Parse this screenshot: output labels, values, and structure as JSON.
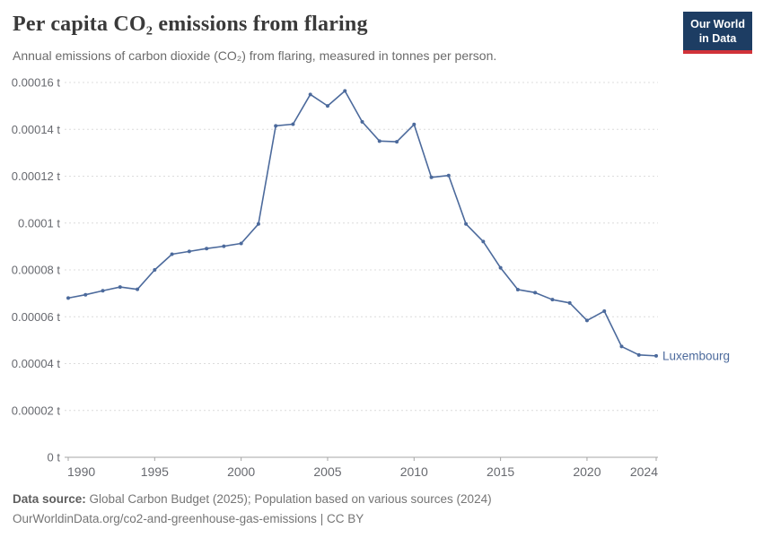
{
  "header": {
    "title": "Per capita CO₂ emissions from flaring",
    "subtitle": "Annual emissions of carbon dioxide (CO₂) from flaring, measured in tonnes per person.",
    "logo": {
      "line1": "Our World",
      "line2": "in Data",
      "bg_color": "#1d3d63",
      "bar_color": "#d13239"
    }
  },
  "chart_data": {
    "type": "line",
    "title": "Per capita CO₂ emissions from flaring",
    "entity": "Luxembourg",
    "unit": "t",
    "xlabel": "",
    "ylabel": "",
    "xlim": [
      1990,
      2024
    ],
    "ylim": [
      0,
      0.00016
    ],
    "grid": true,
    "legend_position": "end-of-line",
    "line_color": "#4c6a9c",
    "grid_color": "#dcdcdc",
    "axis_color": "#a5a5a5",
    "x": [
      1990,
      1991,
      1992,
      1993,
      1994,
      1995,
      1996,
      1997,
      1998,
      1999,
      2000,
      2001,
      2002,
      2003,
      2004,
      2005,
      2006,
      2007,
      2008,
      2009,
      2010,
      2011,
      2012,
      2013,
      2014,
      2015,
      2016,
      2017,
      2018,
      2019,
      2020,
      2021,
      2022,
      2023,
      2024
    ],
    "values": [
      6.8e-05,
      6.94e-05,
      7.11e-05,
      7.27e-05,
      7.17e-05,
      8e-05,
      8.67e-05,
      8.79e-05,
      8.91e-05,
      9.01e-05,
      9.13e-05,
      9.96e-05,
      0.0001415,
      0.0001422,
      0.0001549,
      0.00015,
      0.0001564,
      0.0001432,
      0.000135,
      0.0001347,
      0.0001421,
      0.0001195,
      0.0001203,
      9.96e-05,
      9.21e-05,
      8.09e-05,
      7.16e-05,
      7.03e-05,
      6.73e-05,
      6.59e-05,
      5.84e-05,
      6.24e-05,
      4.73e-05,
      4.37e-05,
      4.33e-05
    ],
    "y_ticks": [
      {
        "v": 0,
        "label": "0 t"
      },
      {
        "v": 2e-05,
        "label": "0.00002 t"
      },
      {
        "v": 4e-05,
        "label": "0.00004 t"
      },
      {
        "v": 6e-05,
        "label": "0.00006 t"
      },
      {
        "v": 8e-05,
        "label": "0.00008 t"
      },
      {
        "v": 0.0001,
        "label": "0.0001 t"
      },
      {
        "v": 0.00012,
        "label": "0.00012 t"
      },
      {
        "v": 0.00014,
        "label": "0.00014 t"
      },
      {
        "v": 0.00016,
        "label": "0.00016 t"
      }
    ],
    "x_ticks": [
      {
        "v": 1990,
        "label": "1990"
      },
      {
        "v": 1995,
        "label": "1995"
      },
      {
        "v": 2000,
        "label": "2000"
      },
      {
        "v": 2005,
        "label": "2005"
      },
      {
        "v": 2010,
        "label": "2010"
      },
      {
        "v": 2015,
        "label": "2015"
      },
      {
        "v": 2020,
        "label": "2020"
      },
      {
        "v": 2024,
        "label": "2024"
      }
    ]
  },
  "footer": {
    "source_label": "Data source:",
    "source_text": "Global Carbon Budget (2025); Population based on various sources (2024)",
    "url_text": "OurWorldinData.org/co2-and-greenhouse-gas-emissions",
    "separator": "|",
    "license": "CC BY"
  }
}
